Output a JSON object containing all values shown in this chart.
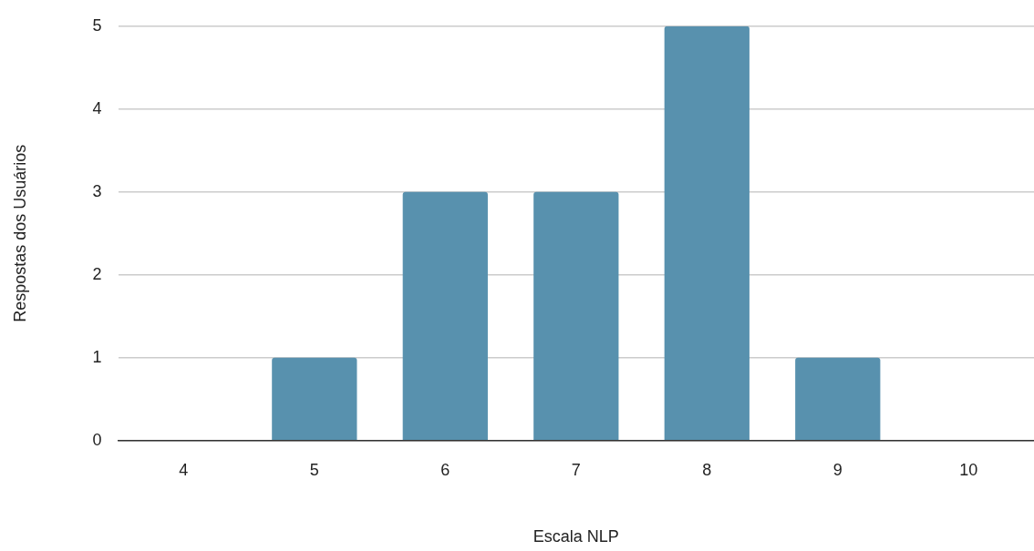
{
  "chart_data": {
    "type": "bar",
    "xlabel": "Escala NLP",
    "ylabel": "Respostas dos Usuários",
    "categories": [
      "4",
      "5",
      "6",
      "7",
      "8",
      "9",
      "10"
    ],
    "values": [
      0,
      1,
      3,
      3,
      5,
      1,
      0
    ],
    "color": "#5891ae",
    "ylim": [
      0,
      5
    ],
    "yticks": [
      0,
      1,
      2,
      3,
      4,
      5
    ],
    "grid": "y",
    "legend": false
  }
}
